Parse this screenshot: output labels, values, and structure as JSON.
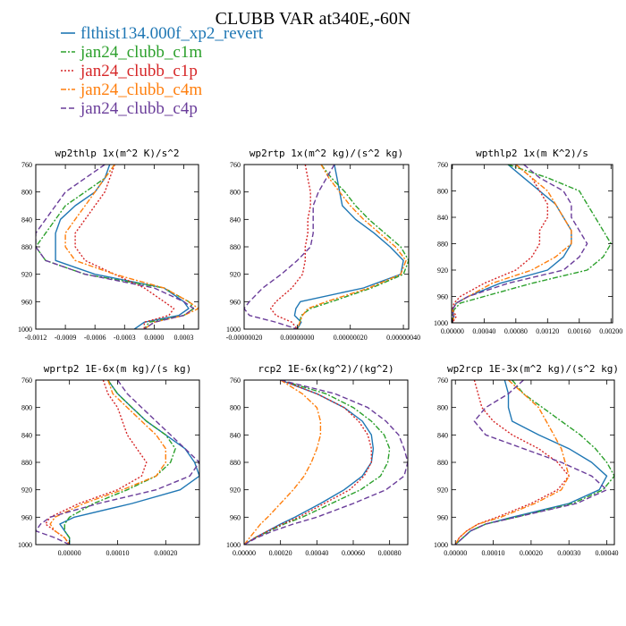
{
  "title": "CLUBB VAR at340E,-60N",
  "legend": [
    {
      "label": "flthist134.000f_xp2_revert",
      "color": "#1f77b4",
      "dash": "solid"
    },
    {
      "label": "jan24_clubb_c1m",
      "color": "#2ca02c",
      "dash": "dashdot"
    },
    {
      "label": "jan24_clubb_c1p",
      "color": "#d62728",
      "dash": "dot"
    },
    {
      "label": "jan24_clubb_c4m",
      "color": "#ff7f0e",
      "dash": "dashdot"
    },
    {
      "label": "jan24_clubb_c4p",
      "color": "#6a3d9a",
      "dash": "dash"
    }
  ],
  "chart_data": [
    {
      "type": "line",
      "title": "wp2thlp  1x(m^2 K)/s^2",
      "xlim": [
        -0.0012,
        0.00045
      ],
      "ylim": [
        760,
        1000
      ],
      "y_reversed": true,
      "xticks": [
        -0.0012,
        -0.0009,
        -0.0006,
        -0.0003,
        0.0,
        0.0003
      ],
      "xtick_labels": [
        "-0.0012",
        "-0.0009",
        "-0.0006",
        "-0.0003",
        "0.0000",
        "0.0003"
      ],
      "yticks": [
        760,
        800,
        840,
        880,
        920,
        960,
        1000
      ],
      "y": [
        760,
        780,
        800,
        820,
        840,
        860,
        880,
        900,
        920,
        940,
        960,
        970,
        980,
        990,
        1000
      ],
      "series": [
        {
          "values": [
            -0.00045,
            -0.0005,
            -0.0006,
            -0.0008,
            -0.00095,
            -0.001,
            -0.001,
            -0.001,
            -0.0006,
            0.0001,
            0.0003,
            0.00035,
            0.00025,
            -0.0001,
            -0.0002
          ]
        },
        {
          "values": [
            -0.0004,
            -0.0005,
            -0.0007,
            -0.0009,
            -0.001,
            -0.0011,
            -0.0012,
            -0.0011,
            -0.0007,
            0.0001,
            0.00035,
            0.0004,
            0.0003,
            -5e-05,
            -0.0001
          ]
        },
        {
          "values": [
            -0.0004,
            -0.00045,
            -0.0005,
            -0.0006,
            -0.0007,
            -0.0008,
            -0.0008,
            -0.0007,
            -0.0004,
            -0.0001,
            0.0001,
            0.0002,
            0.00015,
            -0.0001,
            -0.0001
          ]
        },
        {
          "values": [
            -0.0004,
            -0.0005,
            -0.0006,
            -0.0007,
            -0.0008,
            -0.0009,
            -0.0009,
            -0.0008,
            -0.0004,
            0.0001,
            0.00035,
            0.00045,
            0.0003,
            0.0,
            -0.0001
          ]
        },
        {
          "values": [
            -0.0005,
            -0.0007,
            -0.0009,
            -0.001,
            -0.0011,
            -0.0012,
            -0.0012,
            -0.0011,
            -0.0007,
            0.0,
            0.0003,
            0.0004,
            0.0003,
            0.0,
            -0.0001
          ]
        }
      ]
    },
    {
      "type": "line",
      "title": "wp2rtp  1x(m^2 kg)/(s^2 kg)",
      "xlim": [
        -2e-07,
        4.2e-07
      ],
      "ylim": [
        760,
        1000
      ],
      "y_reversed": true,
      "xticks": [
        -2e-07,
        0.0,
        2e-07,
        4e-07
      ],
      "xtick_labels": [
        "-0.00000020",
        "0.00000000",
        "0.00000020",
        "0.00000040"
      ],
      "yticks": [
        760,
        800,
        840,
        880,
        920,
        960,
        1000
      ],
      "y": [
        760,
        780,
        800,
        820,
        840,
        860,
        880,
        900,
        920,
        940,
        960,
        970,
        980,
        990,
        1000
      ],
      "series": [
        {
          "values": [
            1.4e-07,
            1.5e-07,
            1.6e-07,
            1.7e-07,
            2.2e-07,
            2.9e-07,
            3.5e-07,
            4e-07,
            3.9e-07,
            2.5e-07,
            1.2e-08,
            -5e-09,
            -1e-08,
            1.5e-08,
            0.0
          ]
        },
        {
          "values": [
            9e-08,
            1.3e-07,
            1.8e-07,
            2.2e-07,
            2.7e-07,
            3.3e-07,
            3.9e-07,
            4.2e-07,
            4e-07,
            2.8e-07,
            1.3e-07,
            5e-08,
            1.5e-08,
            1e-08,
            0.0
          ]
        },
        {
          "values": [
            3e-08,
            4e-08,
            5e-08,
            5e-08,
            4e-08,
            4e-08,
            3e-08,
            3e-08,
            2e-08,
            -2e-08,
            -8e-08,
            -1e-07,
            -8e-08,
            -2e-08,
            0.0
          ]
        },
        {
          "values": [
            9e-08,
            1.2e-07,
            1.6e-07,
            2e-07,
            2.5e-07,
            3.1e-07,
            3.7e-07,
            4.1e-07,
            3.9e-07,
            2.7e-07,
            1.1e-07,
            4e-08,
            2e-08,
            1e-08,
            0.0
          ]
        },
        {
          "values": [
            1.4e-07,
            1.1e-07,
            8e-08,
            6e-08,
            6e-08,
            6e-08,
            5e-08,
            0.0,
            -6e-08,
            -1.3e-07,
            -1.8e-07,
            -2e-07,
            -1.8e-07,
            -8e-08,
            0.0
          ]
        }
      ]
    },
    {
      "type": "line",
      "title": "wpthlp2  1x(m K^2)/s",
      "xlim": [
        -1e-05,
        0.00202
      ],
      "ylim": [
        760,
        1000
      ],
      "y_reversed": true,
      "xticks": [
        0.0,
        0.0004,
        0.0008,
        0.0012,
        0.0016,
        0.002
      ],
      "xtick_labels": [
        "0.00000",
        "0.00040",
        "0.00080",
        "0.00120",
        "0.00160",
        "0.00200"
      ],
      "yticks": [
        760,
        800,
        840,
        880,
        920,
        960,
        1000
      ],
      "y": [
        760,
        780,
        800,
        820,
        840,
        860,
        880,
        900,
        920,
        940,
        960,
        970,
        980,
        990,
        1000
      ],
      "series": [
        {
          "values": [
            0.0007,
            0.0009,
            0.0011,
            0.0013,
            0.0014,
            0.0015,
            0.0015,
            0.0014,
            0.0012,
            0.0006,
            0.0002,
            5e-05,
            0.0,
            2e-05,
            0.0
          ]
        },
        {
          "values": [
            0.0007,
            0.0012,
            0.0016,
            0.0017,
            0.0018,
            0.0019,
            0.002,
            0.0019,
            0.0017,
            0.001,
            0.0004,
            0.0001,
            2e-05,
            0.0,
            0.0
          ]
        },
        {
          "values": [
            0.0008,
            0.001,
            0.0011,
            0.0012,
            0.0012,
            0.0011,
            0.0011,
            0.001,
            0.0008,
            0.0004,
            0.0001,
            2e-05,
            0.0,
            5e-05,
            0.0
          ]
        },
        {
          "values": [
            0.0008,
            0.001,
            0.0012,
            0.0013,
            0.0014,
            0.0015,
            0.0015,
            0.0013,
            0.001,
            0.0005,
            0.0002,
            5e-05,
            0.0,
            2e-05,
            0.0
          ]
        },
        {
          "values": [
            0.0009,
            0.0011,
            0.0014,
            0.0015,
            0.0015,
            0.0016,
            0.0017,
            0.0016,
            0.0014,
            0.0007,
            0.0002,
            5e-05,
            0.0,
            1e-05,
            0.0
          ]
        }
      ]
    },
    {
      "type": "line",
      "title": "wprtp2  1E-6x(m kg)/(s kg)",
      "xlim": [
        -7e-05,
        0.00027
      ],
      "ylim": [
        760,
        1000
      ],
      "y_reversed": true,
      "xticks": [
        0.0,
        0.0001,
        0.0002
      ],
      "xtick_labels": [
        "0.00000",
        "0.00010",
        "0.00020"
      ],
      "yticks": [
        760,
        800,
        840,
        880,
        920,
        960,
        1000
      ],
      "y": [
        760,
        780,
        800,
        820,
        840,
        860,
        880,
        900,
        920,
        940,
        960,
        970,
        980,
        990,
        1000
      ],
      "series": [
        {
          "values": [
            8e-05,
            0.0001,
            0.00013,
            0.00016,
            0.0002,
            0.00024,
            0.00026,
            0.00027,
            0.00023,
            0.00013,
            1e-05,
            -2e-05,
            -1e-05,
            0.0,
            0.0
          ]
        },
        {
          "values": [
            8e-05,
            0.0001,
            0.00013,
            0.00016,
            0.0002,
            0.00022,
            0.00021,
            0.00018,
            0.00012,
            5e-05,
            0.0,
            -1e-05,
            -1e-05,
            0.0,
            0.0
          ]
        },
        {
          "values": [
            7e-05,
            8e-05,
            0.0001,
            0.00011,
            0.00012,
            0.00014,
            0.00016,
            0.00015,
            0.0001,
            2e-05,
            -4e-05,
            -5e-05,
            -3e-05,
            -1e-05,
            0.0
          ]
        },
        {
          "values": [
            8e-05,
            9e-05,
            0.00012,
            0.00015,
            0.00018,
            0.0002,
            0.0002,
            0.00018,
            0.00011,
            3e-05,
            -3e-05,
            -4e-05,
            -3e-05,
            -1e-05,
            0.0
          ]
        },
        {
          "values": [
            0.0001,
            0.00012,
            0.00015,
            0.00018,
            0.00021,
            0.00024,
            0.00027,
            0.00025,
            0.00018,
            6e-05,
            -4e-05,
            -6e-05,
            -7e-05,
            -3e-05,
            0.0
          ]
        }
      ]
    },
    {
      "type": "line",
      "title": "rcp2  1E-6x(kg^2)/(kg^2)",
      "xlim": [
        0.0,
        0.0009
      ],
      "ylim": [
        760,
        1000
      ],
      "y_reversed": true,
      "xticks": [
        0.0,
        0.0002,
        0.0004,
        0.0006,
        0.0008
      ],
      "xtick_labels": [
        "0.00000",
        "0.00020",
        "0.00040",
        "0.00060",
        "0.00080"
      ],
      "yticks": [
        760,
        800,
        840,
        880,
        920,
        960,
        1000
      ],
      "y": [
        760,
        780,
        800,
        820,
        840,
        860,
        880,
        900,
        920,
        940,
        960,
        970,
        980,
        990,
        1000
      ],
      "series": [
        {
          "values": [
            0.0002,
            0.0004,
            0.00055,
            0.00065,
            0.0007,
            0.00071,
            0.0007,
            0.00065,
            0.00055,
            0.00042,
            0.00028,
            0.0002,
            0.00013,
            6e-05,
            0.0
          ]
        },
        {
          "values": [
            0.0002,
            0.00045,
            0.0006,
            0.0007,
            0.00077,
            0.0008,
            0.00079,
            0.00075,
            0.00064,
            0.00048,
            0.00032,
            0.00022,
            0.00014,
            6e-05,
            0.0
          ]
        },
        {
          "values": [
            0.0002,
            0.0004,
            0.00055,
            0.00063,
            0.00068,
            0.0007,
            0.0007,
            0.00066,
            0.00058,
            0.00044,
            0.0003,
            0.00021,
            0.00013,
            6e-05,
            0.0
          ]
        },
        {
          "values": [
            0.0002,
            0.00032,
            0.0004,
            0.00042,
            0.00042,
            0.0004,
            0.00037,
            0.00033,
            0.00027,
            0.0002,
            0.00013,
            9e-05,
            6e-05,
            3e-05,
            0.0
          ]
        },
        {
          "values": [
            0.0002,
            0.0005,
            0.00068,
            0.00078,
            0.00085,
            0.00088,
            0.0009,
            0.00088,
            0.00078,
            0.0006,
            0.0004,
            0.00027,
            0.00016,
            7e-05,
            0.0
          ]
        }
      ]
    },
    {
      "type": "line",
      "title": "wp2rcp  1E-3x(m^2 kg)/(s^2 kg)",
      "xlim": [
        -1e-05,
        0.00042
      ],
      "ylim": [
        760,
        1000
      ],
      "y_reversed": true,
      "xticks": [
        0.0,
        0.0001,
        0.0002,
        0.0003,
        0.0004
      ],
      "xtick_labels": [
        "0.00000",
        "0.00010",
        "0.00020",
        "0.00030",
        "0.00040"
      ],
      "yticks": [
        760,
        800,
        840,
        880,
        920,
        960,
        1000
      ],
      "y": [
        760,
        780,
        800,
        820,
        840,
        860,
        880,
        900,
        920,
        940,
        960,
        970,
        980,
        990,
        1000
      ],
      "series": [
        {
          "values": [
            0.00013,
            0.00014,
            0.00014,
            0.00015,
            0.00022,
            0.0003,
            0.00036,
            0.0004,
            0.00038,
            0.0003,
            0.00015,
            8e-05,
            4e-05,
            2e-05,
            0.0
          ]
        },
        {
          "values": [
            0.00015,
            0.00018,
            0.00023,
            0.00028,
            0.00033,
            0.00037,
            0.0004,
            0.00042,
            0.00039,
            0.00031,
            0.00016,
            8e-05,
            4e-05,
            2e-05,
            0.0
          ]
        },
        {
          "values": [
            5e-05,
            6e-05,
            7e-05,
            0.0001,
            0.00015,
            0.00022,
            0.00027,
            0.0003,
            0.00027,
            0.0002,
            0.00011,
            6e-05,
            3e-05,
            1e-05,
            0.0
          ]
        },
        {
          "values": [
            0.00014,
            0.00018,
            0.00022,
            0.00024,
            0.00026,
            0.00028,
            0.00029,
            0.0003,
            0.00028,
            0.00021,
            0.00012,
            6e-05,
            3e-05,
            1e-05,
            0.0
          ]
        },
        {
          "values": [
            0.00018,
            0.00014,
            8e-05,
            5e-05,
            8e-05,
            0.00018,
            0.00028,
            0.00036,
            0.0004,
            0.00032,
            0.00016,
            8e-05,
            4e-05,
            2e-05,
            0.0
          ]
        }
      ]
    }
  ]
}
